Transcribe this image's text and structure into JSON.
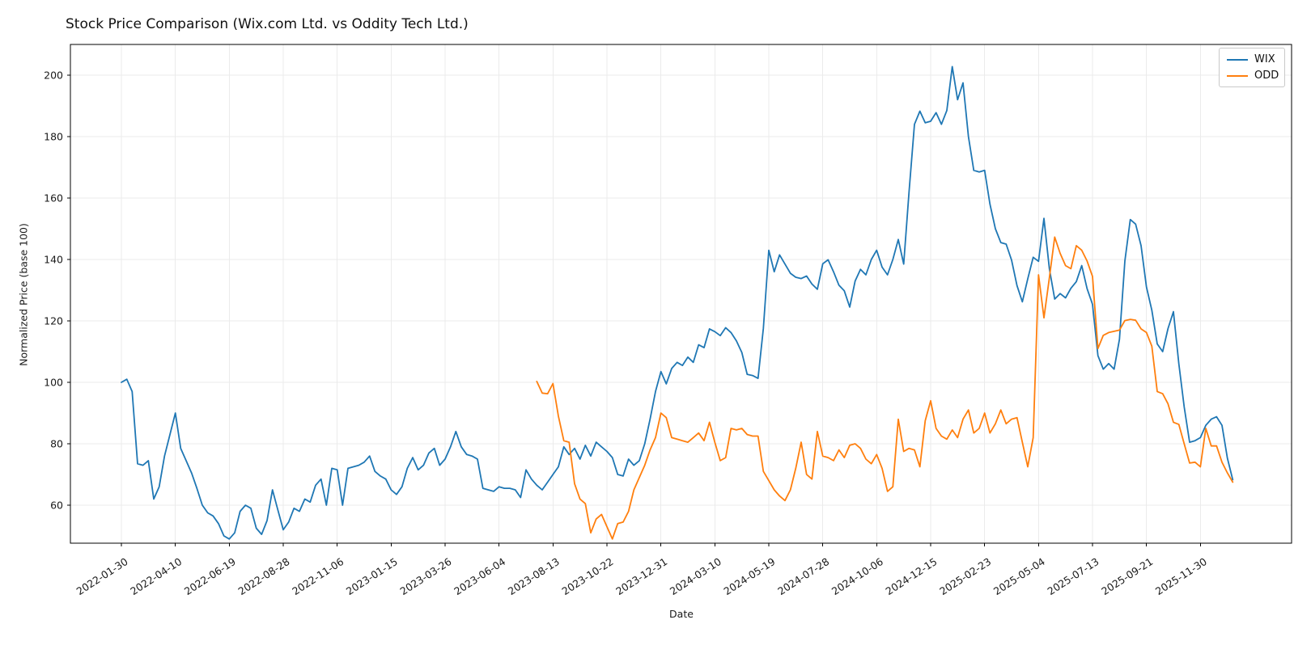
{
  "title": "Stock Price Comparison (Wix.com Ltd. vs Oddity Tech Ltd.)",
  "xlabel": "Date",
  "ylabel": "Normalized Price (base 100)",
  "legend": {
    "position": "upper right",
    "entries": [
      {
        "label": "WIX",
        "color": "#1f77b4"
      },
      {
        "label": "ODD",
        "color": "#ff7f0e"
      }
    ]
  },
  "colors": {
    "wix_line": "#1f77b4",
    "odd_line": "#ff7f0e",
    "grid": "#ebebeb",
    "axis": "#000000",
    "text": "#1a1a1a",
    "background": "#ffffff"
  },
  "chart_data": {
    "type": "line",
    "title": "Stock Price Comparison (Wix.com Ltd. vs Oddity Tech Ltd.)",
    "xlabel": "Date",
    "ylabel": "Normalized Price (base 100)",
    "grid": true,
    "legend_position": "upper right",
    "x_unit": "weekly",
    "start_date": "2022-01-30",
    "x_tick_weeks": [
      0,
      10,
      20,
      30,
      40,
      50,
      60,
      70,
      80,
      90,
      100,
      110,
      120,
      130,
      140,
      150,
      160,
      170,
      180,
      190,
      200
    ],
    "x_tick_labels": [
      "2022-01-30",
      "2022-04-10",
      "2022-06-19",
      "2022-08-28",
      "2022-11-06",
      "2023-01-15",
      "2023-03-26",
      "2023-06-04",
      "2023-08-13",
      "2023-10-22",
      "2023-12-31",
      "2024-03-10",
      "2024-05-19",
      "2024-07-28",
      "2024-10-06",
      "2024-12-15",
      "2025-02-23",
      "2025-05-04",
      "2025-07-13",
      "2025-09-21",
      "2025-11-30"
    ],
    "y_ticks": [
      60,
      80,
      100,
      120,
      140,
      160,
      180,
      200
    ],
    "ylim": [
      47.6,
      210.3
    ],
    "series": [
      {
        "name": "WIX",
        "color": "#1f77b4",
        "start_week": 0,
        "values": [
          100,
          101,
          97,
          73.5,
          73,
          74.5,
          62,
          66,
          76,
          83,
          90,
          78.5,
          74.5,
          70.5,
          65.5,
          60,
          57.5,
          56.5,
          54,
          50,
          49,
          51,
          58,
          60,
          59,
          52.5,
          50.5,
          55,
          65,
          58.5,
          52,
          54.5,
          59,
          58,
          62,
          61,
          66.5,
          68.5,
          60,
          72,
          71.5,
          60,
          72,
          72.5,
          73,
          74,
          76,
          71,
          69.5,
          68.5,
          65,
          63.5,
          66,
          72,
          75.5,
          71.5,
          73,
          77,
          78.5,
          73,
          75,
          79,
          84,
          79,
          76.5,
          76,
          75,
          65.5,
          65,
          64.5,
          66,
          65.5,
          65.5,
          65,
          62.5,
          71.5,
          68.5,
          66.5,
          65,
          67.5,
          70,
          72.5,
          79,
          76.5,
          78.5,
          75,
          79.5,
          76,
          80.5,
          79,
          77.5,
          75.5,
          70,
          69.5,
          75,
          73,
          74.5,
          80,
          88,
          97,
          103.5,
          99.5,
          104.5,
          106.5,
          105.5,
          108.2,
          106.5,
          112.2,
          111.3,
          117.4,
          116.5,
          115.2,
          117.8,
          116.2,
          113.5,
          109.7,
          102.6,
          102.2,
          101.3,
          117.6,
          143,
          136,
          141.5,
          138.5,
          135.5,
          134.2,
          133.8,
          134.6,
          132,
          130.3,
          138.6,
          139.9,
          136,
          131.6,
          129.8,
          124.5,
          133,
          136.8,
          135,
          140,
          143,
          137.5,
          135,
          140,
          146.5,
          138.5,
          162,
          184,
          188.3,
          184.5,
          185,
          187.8,
          184,
          188.5,
          202.8,
          192,
          197.5,
          180,
          169,
          168.5,
          169,
          158,
          150,
          145.5,
          145,
          139.8,
          131.5,
          126.2,
          133.7,
          140.7,
          139.4,
          153.4,
          137,
          127.1,
          128.9,
          127.5,
          130.6,
          132.8,
          138,
          130.5,
          125.4,
          108.7,
          104.3,
          106.1,
          104.3,
          114,
          139.5,
          153,
          151.5,
          144.5,
          131,
          123.5,
          112.5,
          110,
          117.5,
          123,
          106,
          92,
          80.5,
          81,
          82,
          86,
          88,
          88.8,
          86,
          75.3,
          68.3
        ]
      },
      {
        "name": "ODD",
        "color": "#ff7f0e",
        "start_week": 77,
        "values": [
          100.3,
          96.5,
          96.3,
          99.6,
          89,
          81,
          80.5,
          67,
          62,
          60.5,
          51,
          55.5,
          57,
          53,
          49,
          54,
          54.5,
          58,
          65,
          69,
          73,
          78,
          82,
          90,
          88.5,
          82,
          81.5,
          81,
          80.5,
          82,
          83.5,
          81,
          87,
          80.5,
          74.5,
          75.5,
          85,
          84.5,
          85,
          83,
          82.5,
          82.5,
          71,
          68,
          65,
          63,
          61.5,
          65,
          72,
          80.5,
          70,
          68.5,
          84,
          76,
          75.5,
          74.5,
          78,
          75.5,
          79.5,
          80,
          78.5,
          75,
          73.5,
          76.5,
          72,
          64.5,
          66,
          88,
          77.5,
          78.5,
          78,
          72.5,
          87.5,
          94,
          85,
          82.5,
          81.5,
          84.5,
          82,
          88,
          91,
          83.5,
          85,
          90,
          83.5,
          86.5,
          91,
          86.5,
          88,
          88.5,
          80.5,
          72.5,
          82,
          135,
          121,
          134,
          147.3,
          142,
          138,
          137,
          144.5,
          143,
          139.5,
          134.5,
          111,
          115.3,
          116.2,
          116.6,
          117,
          120.1,
          120.5,
          120.2,
          117.4,
          116.2,
          111.8,
          97,
          96.3,
          93,
          87,
          86.3,
          80,
          73.7,
          74,
          72.5,
          85,
          79.3,
          79.3,
          74,
          70.5,
          67.5
        ]
      }
    ]
  }
}
